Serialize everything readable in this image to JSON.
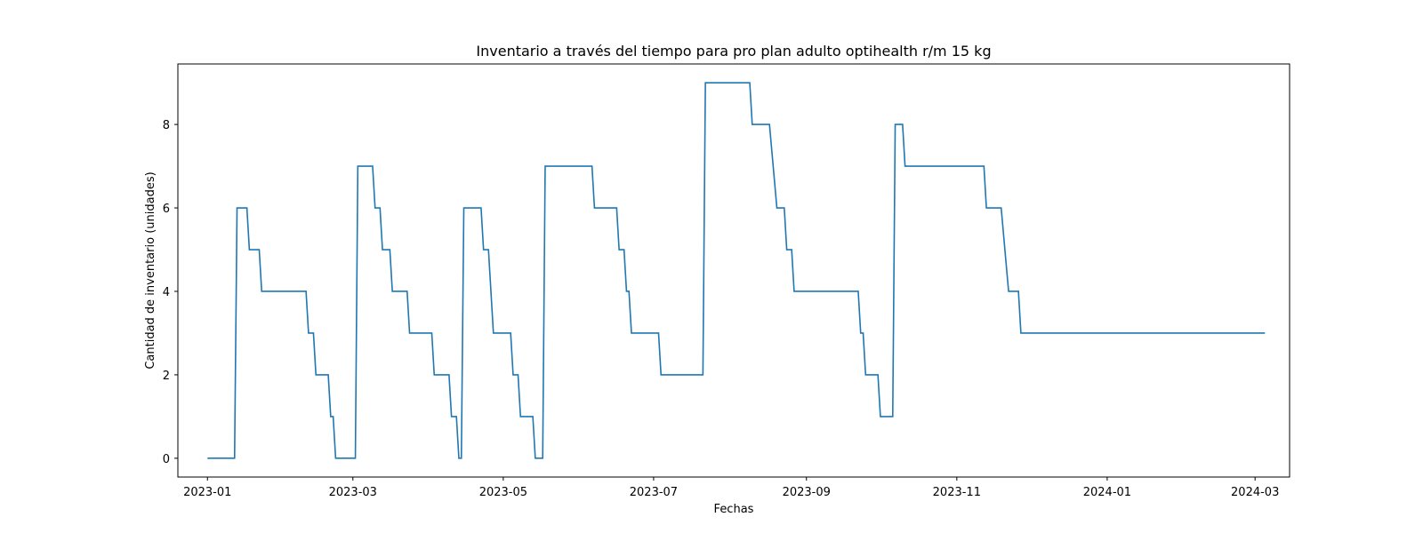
{
  "chart_data": {
    "type": "line",
    "title": "Inventario a través del tiempo para pro plan adulto optihealth r/m 15 kg",
    "xlabel": "Fechas",
    "ylabel": "Cantidad de inventario (unidades)",
    "xlim": [
      "2022-12-20",
      "2024-03-15"
    ],
    "ylim": [
      -0.45,
      9.45
    ],
    "x_ticks": [
      "2023-01-01",
      "2023-03-01",
      "2023-05-01",
      "2023-07-01",
      "2023-09-01",
      "2023-11-01",
      "2024-01-01",
      "2024-03-01"
    ],
    "x_tick_labels": [
      "2023-01",
      "2023-03",
      "2023-05",
      "2023-07",
      "2023-09",
      "2023-11",
      "2024-01",
      "2024-03"
    ],
    "y_ticks": [
      0,
      2,
      4,
      6,
      8
    ],
    "y_tick_labels": [
      "0",
      "2",
      "4",
      "6",
      "8"
    ],
    "grid": false,
    "color": "#1f77b4",
    "series": [
      {
        "x": [
          "2023-01-01",
          "2023-01-12",
          "2023-01-13",
          "2023-01-17",
          "2023-01-18",
          "2023-01-22",
          "2023-01-23",
          "2023-02-10",
          "2023-02-11",
          "2023-02-13",
          "2023-02-14",
          "2023-02-19",
          "2023-02-20",
          "2023-02-21",
          "2023-02-22",
          "2023-03-02",
          "2023-03-03",
          "2023-03-09",
          "2023-03-10",
          "2023-03-12",
          "2023-03-13",
          "2023-03-16",
          "2023-03-17",
          "2023-03-23",
          "2023-03-24",
          "2023-04-02",
          "2023-04-03",
          "2023-04-09",
          "2023-04-10",
          "2023-04-12",
          "2023-04-13",
          "2023-04-14",
          "2023-04-15",
          "2023-04-22",
          "2023-04-23",
          "2023-04-25",
          "2023-04-27",
          "2023-05-04",
          "2023-05-05",
          "2023-05-07",
          "2023-05-08",
          "2023-05-13",
          "2023-05-14",
          "2023-05-17",
          "2023-05-18",
          "2023-06-06",
          "2023-06-07",
          "2023-06-16",
          "2023-06-17",
          "2023-06-19",
          "2023-06-20",
          "2023-06-21",
          "2023-06-22",
          "2023-07-03",
          "2023-07-04",
          "2023-07-21",
          "2023-07-22",
          "2023-08-09",
          "2023-08-10",
          "2023-08-17",
          "2023-08-20",
          "2023-08-23",
          "2023-08-24",
          "2023-08-26",
          "2023-08-27",
          "2023-09-22",
          "2023-09-23",
          "2023-09-24",
          "2023-09-25",
          "2023-09-30",
          "2023-10-01",
          "2023-10-06",
          "2023-10-07",
          "2023-10-10",
          "2023-10-11",
          "2023-11-12",
          "2023-11-13",
          "2023-11-19",
          "2023-11-22",
          "2023-11-26",
          "2023-11-27",
          "2024-03-05"
        ],
        "y": [
          0,
          0,
          6,
          6,
          5,
          5,
          4,
          4,
          3,
          3,
          2,
          2,
          1,
          1,
          0,
          0,
          7,
          7,
          6,
          6,
          5,
          5,
          4,
          4,
          3,
          3,
          2,
          2,
          1,
          1,
          0,
          0,
          6,
          6,
          5,
          5,
          3,
          3,
          2,
          2,
          1,
          1,
          0,
          0,
          7,
          7,
          6,
          6,
          5,
          5,
          4,
          4,
          3,
          3,
          2,
          2,
          9,
          9,
          8,
          8,
          6,
          6,
          5,
          5,
          4,
          4,
          3,
          3,
          2,
          2,
          1,
          1,
          8,
          8,
          7,
          7,
          6,
          6,
          4,
          4,
          3,
          3
        ]
      }
    ]
  }
}
